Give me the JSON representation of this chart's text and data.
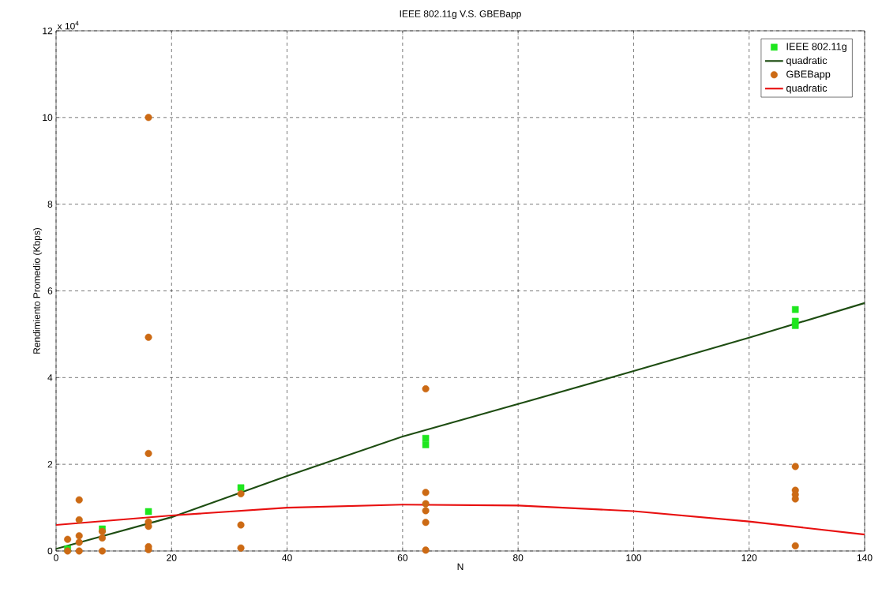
{
  "chart_data": {
    "type": "scatter",
    "title": "IEEE 802.11g V.S. GBEBapp",
    "xlabel": "N",
    "ylabel": "Rendimiento Promedio (Kbps)",
    "annotations": [
      "x 10$^{4}$"
    ],
    "xlim": [
      0,
      140
    ],
    "xticks": [
      0,
      20,
      40,
      60,
      80,
      100,
      120,
      140
    ],
    "ylim": [
      0,
      12
    ],
    "yticks": [
      0,
      2,
      4,
      6,
      8,
      10,
      12
    ],
    "grid": true,
    "legend": "top right",
    "series": [
      {
        "name": "IEEE 802.11g",
        "marker": "square",
        "color": "#1ee61e",
        "x": [
          2,
          8,
          16,
          32,
          64,
          64,
          128,
          128,
          128
        ],
        "values": [
          0.05,
          0.51,
          0.91,
          1.46,
          2.45,
          2.6,
          5.57,
          5.3,
          5.2
        ]
      },
      {
        "name": "quadratic",
        "type": "line",
        "marker": "none",
        "color": "#1e4d12",
        "x": [
          0,
          20,
          40,
          60,
          80,
          100,
          120,
          140
        ],
        "values": [
          0.05,
          0.78,
          1.73,
          2.64,
          3.39,
          4.15,
          4.92,
          5.72
        ]
      },
      {
        "name": "GBEBapp",
        "marker": "circle",
        "color": "#cc6a14",
        "x": [
          2,
          2,
          4,
          4,
          4,
          4,
          4,
          8,
          8,
          8,
          16,
          16,
          16,
          16,
          16,
          16,
          16,
          32,
          32,
          32,
          64,
          64,
          64,
          64,
          64,
          64,
          128,
          128,
          128,
          128,
          128
        ],
        "values": [
          0.27,
          0.0,
          1.18,
          0.72,
          0.35,
          0.2,
          0.0,
          0.45,
          0.3,
          0.0,
          10.0,
          4.93,
          2.25,
          0.67,
          0.57,
          0.1,
          0.03,
          1.32,
          0.6,
          0.07,
          3.74,
          1.35,
          1.09,
          0.93,
          0.66,
          0.02,
          1.95,
          1.4,
          1.3,
          1.2,
          0.12
        ]
      },
      {
        "name": "quadratic",
        "type": "line",
        "marker": "none",
        "color": "#e81010",
        "x": [
          0,
          20,
          40,
          60,
          80,
          100,
          120,
          140
        ],
        "values": [
          0.6,
          0.82,
          1.0,
          1.07,
          1.05,
          0.92,
          0.68,
          0.38
        ]
      }
    ]
  }
}
